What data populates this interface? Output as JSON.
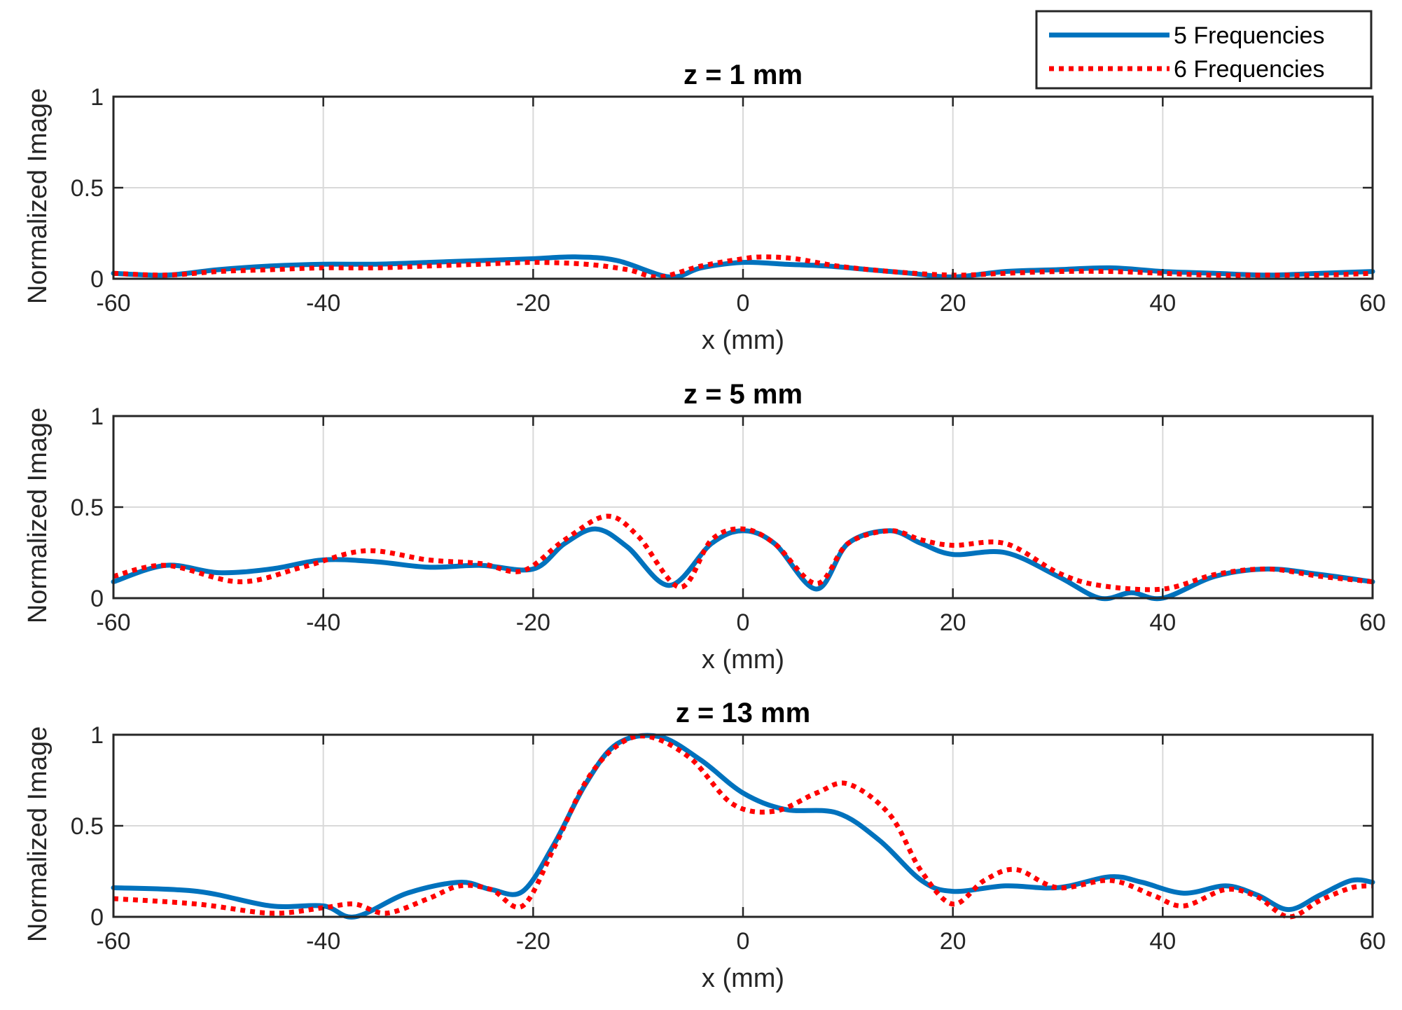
{
  "chart_data": [
    {
      "type": "line",
      "title": "z = 1 mm",
      "xlabel": "x (mm)",
      "ylabel": "Normalized Image",
      "xlim": [
        -60,
        60
      ],
      "ylim": [
        0,
        1
      ],
      "xticks": [
        "-60",
        "-40",
        "-20",
        "0",
        "20",
        "40",
        "60"
      ],
      "yticks": [
        "0",
        "0.5",
        "1"
      ],
      "grid": true,
      "series": [
        {
          "name": "5 Frequencies",
          "color": "#0072BD",
          "style": "solid",
          "x": [
            -60,
            -55,
            -50,
            -45,
            -40,
            -35,
            -30,
            -25,
            -20,
            -16,
            -12,
            -7,
            -4,
            0,
            4,
            8,
            12,
            16,
            20,
            25,
            30,
            35,
            40,
            45,
            50,
            55,
            60
          ],
          "y": [
            0.03,
            0.02,
            0.05,
            0.07,
            0.08,
            0.08,
            0.09,
            0.1,
            0.11,
            0.12,
            0.1,
            0.01,
            0.06,
            0.09,
            0.08,
            0.07,
            0.05,
            0.03,
            0.01,
            0.04,
            0.05,
            0.06,
            0.04,
            0.03,
            0.02,
            0.03,
            0.04
          ]
        },
        {
          "name": "6 Frequencies",
          "color": "#FF0000",
          "style": "dotted",
          "x": [
            -60,
            -55,
            -50,
            -45,
            -40,
            -35,
            -30,
            -25,
            -20,
            -15,
            -11,
            -8,
            -4,
            0,
            2,
            5,
            9,
            14,
            20,
            25,
            30,
            35,
            40,
            45,
            50,
            55,
            60
          ],
          "y": [
            0.03,
            0.02,
            0.04,
            0.05,
            0.06,
            0.06,
            0.07,
            0.08,
            0.09,
            0.08,
            0.05,
            0.01,
            0.07,
            0.11,
            0.12,
            0.11,
            0.07,
            0.04,
            0.02,
            0.03,
            0.04,
            0.04,
            0.03,
            0.02,
            0.02,
            0.02,
            0.03
          ]
        }
      ]
    },
    {
      "type": "line",
      "title": "z = 5 mm",
      "xlabel": "x (mm)",
      "ylabel": "Normalized Image",
      "xlim": [
        -60,
        60
      ],
      "ylim": [
        0,
        1
      ],
      "xticks": [
        "-60",
        "-40",
        "-20",
        "0",
        "20",
        "40",
        "60"
      ],
      "yticks": [
        "0",
        "0.5",
        "1"
      ],
      "grid": true,
      "series": [
        {
          "name": "5 Frequencies",
          "color": "#0072BD",
          "style": "solid",
          "x": [
            -60,
            -55,
            -50,
            -45,
            -40,
            -35,
            -30,
            -25,
            -20,
            -17,
            -14,
            -11,
            -7,
            -3,
            0,
            3,
            7,
            10,
            14,
            17,
            20,
            25,
            30,
            34,
            37,
            40,
            45,
            50,
            55,
            60
          ],
          "y": [
            0.09,
            0.18,
            0.14,
            0.16,
            0.21,
            0.2,
            0.17,
            0.18,
            0.16,
            0.3,
            0.38,
            0.28,
            0.07,
            0.3,
            0.37,
            0.3,
            0.05,
            0.3,
            0.37,
            0.3,
            0.24,
            0.25,
            0.12,
            0.0,
            0.03,
            0.0,
            0.12,
            0.16,
            0.13,
            0.09
          ]
        },
        {
          "name": "6 Frequencies",
          "color": "#FF0000",
          "style": "dotted",
          "x": [
            -60,
            -55,
            -48,
            -42,
            -36,
            -30,
            -25,
            -21,
            -17,
            -13,
            -10,
            -6,
            -3,
            0,
            3,
            7,
            10,
            14,
            17,
            20,
            25,
            30,
            34,
            40,
            45,
            50,
            55,
            60
          ],
          "y": [
            0.12,
            0.18,
            0.09,
            0.17,
            0.26,
            0.21,
            0.19,
            0.15,
            0.32,
            0.45,
            0.34,
            0.06,
            0.32,
            0.38,
            0.3,
            0.08,
            0.3,
            0.37,
            0.32,
            0.29,
            0.3,
            0.14,
            0.07,
            0.05,
            0.13,
            0.16,
            0.12,
            0.09
          ]
        }
      ]
    },
    {
      "type": "line",
      "title": "z = 13 mm",
      "xlabel": "x (mm)",
      "ylabel": "Normalized Image",
      "xlim": [
        -60,
        60
      ],
      "ylim": [
        0,
        1
      ],
      "xticks": [
        "-60",
        "-40",
        "-20",
        "0",
        "20",
        "40",
        "60"
      ],
      "yticks": [
        "0",
        "0.5",
        "1"
      ],
      "grid": true,
      "series": [
        {
          "name": "5 Frequencies",
          "color": "#0072BD",
          "style": "solid",
          "x": [
            -60,
            -52,
            -45,
            -40,
            -37,
            -32,
            -27,
            -24,
            -21,
            -18,
            -15,
            -12,
            -8,
            -4,
            0,
            4,
            9,
            13,
            17,
            20,
            25,
            30,
            35,
            38,
            42,
            46,
            49,
            52,
            55,
            58,
            60
          ],
          "y": [
            0.16,
            0.14,
            0.06,
            0.06,
            0.0,
            0.13,
            0.19,
            0.15,
            0.14,
            0.4,
            0.73,
            0.95,
            0.99,
            0.86,
            0.68,
            0.59,
            0.57,
            0.42,
            0.2,
            0.14,
            0.17,
            0.16,
            0.22,
            0.19,
            0.13,
            0.17,
            0.12,
            0.04,
            0.12,
            0.2,
            0.19
          ]
        },
        {
          "name": "6 Frequencies",
          "color": "#FF0000",
          "style": "dotted",
          "x": [
            -60,
            -52,
            -45,
            -40,
            -37,
            -34,
            -30,
            -27,
            -24,
            -21,
            -18,
            -15,
            -12,
            -9,
            -5,
            -1,
            3,
            7,
            10,
            14,
            17,
            20,
            23,
            26,
            30,
            35,
            39,
            42,
            46,
            49,
            52,
            55,
            58,
            60
          ],
          "y": [
            0.1,
            0.07,
            0.02,
            0.05,
            0.07,
            0.02,
            0.1,
            0.17,
            0.15,
            0.06,
            0.38,
            0.74,
            0.94,
            0.99,
            0.87,
            0.62,
            0.58,
            0.68,
            0.73,
            0.56,
            0.25,
            0.07,
            0.2,
            0.26,
            0.16,
            0.2,
            0.12,
            0.06,
            0.15,
            0.11,
            0.0,
            0.09,
            0.16,
            0.17
          ]
        }
      ]
    }
  ],
  "legend": {
    "placement": "top-right",
    "entries": [
      {
        "label": "5 Frequencies",
        "color": "#0072BD",
        "style": "solid"
      },
      {
        "label": "6 Frequencies",
        "color": "#FF0000",
        "style": "dotted"
      }
    ]
  }
}
